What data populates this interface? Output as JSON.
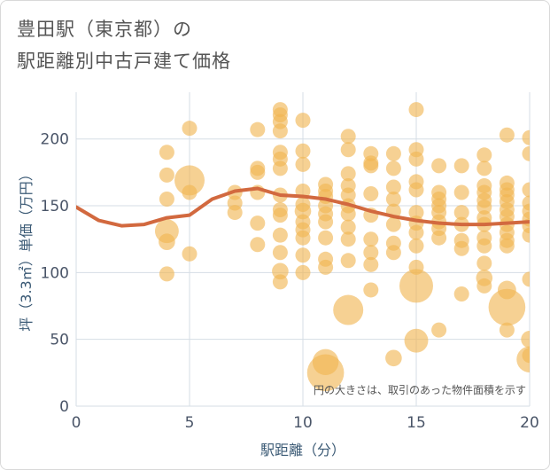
{
  "title_line1": "豊田駅（東京都）の",
  "title_line2": "駅距離別中古戸建て価格",
  "chart_data": {
    "type": "scatter",
    "xlabel": "駅距離（分）",
    "ylabel": "坪（3.3㎡）単価（万円）",
    "xlim": [
      0,
      20
    ],
    "ylim": [
      0,
      235
    ],
    "xticks": [
      0,
      5,
      10,
      15,
      20
    ],
    "yticks": [
      0,
      50,
      100,
      150,
      200
    ],
    "grid": true,
    "annotation": "円の大きさは、取引のあった物件面積を示す",
    "colors": {
      "bubble": "#f0b450",
      "trend": "#d2693f"
    },
    "points": [
      {
        "x": 4,
        "y": 190,
        "s": 1
      },
      {
        "x": 4,
        "y": 173,
        "s": 1
      },
      {
        "x": 4,
        "y": 155,
        "s": 1
      },
      {
        "x": 4,
        "y": 131,
        "s": 2.5
      },
      {
        "x": 4,
        "y": 123,
        "s": 1.2
      },
      {
        "x": 4,
        "y": 99,
        "s": 1
      },
      {
        "x": 5,
        "y": 208,
        "s": 1
      },
      {
        "x": 5,
        "y": 169,
        "s": 4
      },
      {
        "x": 5,
        "y": 160,
        "s": 1
      },
      {
        "x": 5,
        "y": 114,
        "s": 1
      },
      {
        "x": 7,
        "y": 160,
        "s": 1
      },
      {
        "x": 7,
        "y": 152,
        "s": 1
      },
      {
        "x": 7,
        "y": 145,
        "s": 1
      },
      {
        "x": 8,
        "y": 207,
        "s": 1
      },
      {
        "x": 8,
        "y": 178,
        "s": 1
      },
      {
        "x": 8,
        "y": 175,
        "s": 1
      },
      {
        "x": 8,
        "y": 160,
        "s": 1
      },
      {
        "x": 8,
        "y": 137,
        "s": 1
      },
      {
        "x": 8,
        "y": 121,
        "s": 1
      },
      {
        "x": 9,
        "y": 222,
        "s": 1
      },
      {
        "x": 9,
        "y": 218,
        "s": 1
      },
      {
        "x": 9,
        "y": 213,
        "s": 1
      },
      {
        "x": 9,
        "y": 206,
        "s": 1
      },
      {
        "x": 9,
        "y": 190,
        "s": 1
      },
      {
        "x": 9,
        "y": 185,
        "s": 1
      },
      {
        "x": 9,
        "y": 178,
        "s": 1
      },
      {
        "x": 9,
        "y": 158,
        "s": 1
      },
      {
        "x": 9,
        "y": 147,
        "s": 1
      },
      {
        "x": 9,
        "y": 143,
        "s": 1
      },
      {
        "x": 9,
        "y": 128,
        "s": 1
      },
      {
        "x": 9,
        "y": 115,
        "s": 1
      },
      {
        "x": 9,
        "y": 101,
        "s": 1.2
      },
      {
        "x": 9,
        "y": 93,
        "s": 1
      },
      {
        "x": 10,
        "y": 214,
        "s": 1
      },
      {
        "x": 10,
        "y": 191,
        "s": 1
      },
      {
        "x": 10,
        "y": 181,
        "s": 1
      },
      {
        "x": 10,
        "y": 161,
        "s": 1
      },
      {
        "x": 10,
        "y": 151,
        "s": 1
      },
      {
        "x": 10,
        "y": 146,
        "s": 1.2
      },
      {
        "x": 10,
        "y": 138,
        "s": 1
      },
      {
        "x": 10,
        "y": 132,
        "s": 1
      },
      {
        "x": 10,
        "y": 126,
        "s": 1
      },
      {
        "x": 10,
        "y": 113,
        "s": 1
      },
      {
        "x": 10,
        "y": 100,
        "s": 1
      },
      {
        "x": 11,
        "y": 166,
        "s": 1
      },
      {
        "x": 11,
        "y": 161,
        "s": 1
      },
      {
        "x": 11,
        "y": 157,
        "s": 1
      },
      {
        "x": 11,
        "y": 150,
        "s": 1
      },
      {
        "x": 11,
        "y": 144,
        "s": 1
      },
      {
        "x": 11,
        "y": 138,
        "s": 1
      },
      {
        "x": 11,
        "y": 126,
        "s": 1
      },
      {
        "x": 11,
        "y": 110,
        "s": 1
      },
      {
        "x": 11,
        "y": 104,
        "s": 1
      },
      {
        "x": 11,
        "y": 33,
        "s": 3
      },
      {
        "x": 11,
        "y": 25,
        "s": 6
      },
      {
        "x": 12,
        "y": 202,
        "s": 1
      },
      {
        "x": 12,
        "y": 192,
        "s": 1
      },
      {
        "x": 12,
        "y": 174,
        "s": 1
      },
      {
        "x": 12,
        "y": 165,
        "s": 1
      },
      {
        "x": 12,
        "y": 158,
        "s": 1
      },
      {
        "x": 12,
        "y": 150,
        "s": 1
      },
      {
        "x": 12,
        "y": 144,
        "s": 1
      },
      {
        "x": 12,
        "y": 134,
        "s": 1
      },
      {
        "x": 12,
        "y": 125,
        "s": 1
      },
      {
        "x": 12,
        "y": 109,
        "s": 1
      },
      {
        "x": 12,
        "y": 72,
        "s": 4
      },
      {
        "x": 13,
        "y": 189,
        "s": 1
      },
      {
        "x": 13,
        "y": 182,
        "s": 1
      },
      {
        "x": 13,
        "y": 180,
        "s": 1
      },
      {
        "x": 13,
        "y": 159,
        "s": 1
      },
      {
        "x": 13,
        "y": 143,
        "s": 1
      },
      {
        "x": 13,
        "y": 125,
        "s": 1
      },
      {
        "x": 13,
        "y": 115,
        "s": 1
      },
      {
        "x": 13,
        "y": 106,
        "s": 1
      },
      {
        "x": 13,
        "y": 87,
        "s": 1
      },
      {
        "x": 14,
        "y": 189,
        "s": 1
      },
      {
        "x": 14,
        "y": 178,
        "s": 1
      },
      {
        "x": 14,
        "y": 164,
        "s": 1
      },
      {
        "x": 14,
        "y": 155,
        "s": 1
      },
      {
        "x": 14,
        "y": 146,
        "s": 1
      },
      {
        "x": 14,
        "y": 136,
        "s": 1
      },
      {
        "x": 14,
        "y": 122,
        "s": 1
      },
      {
        "x": 14,
        "y": 115,
        "s": 1
      },
      {
        "x": 14,
        "y": 36,
        "s": 1.2
      },
      {
        "x": 15,
        "y": 222,
        "s": 1
      },
      {
        "x": 15,
        "y": 192,
        "s": 1
      },
      {
        "x": 15,
        "y": 185,
        "s": 1
      },
      {
        "x": 15,
        "y": 168,
        "s": 1
      },
      {
        "x": 15,
        "y": 162,
        "s": 1
      },
      {
        "x": 15,
        "y": 145,
        "s": 1
      },
      {
        "x": 15,
        "y": 137,
        "s": 1
      },
      {
        "x": 15,
        "y": 130,
        "s": 1
      },
      {
        "x": 15,
        "y": 120,
        "s": 1
      },
      {
        "x": 15,
        "y": 104,
        "s": 1
      },
      {
        "x": 15,
        "y": 90,
        "s": 5
      },
      {
        "x": 15,
        "y": 49,
        "s": 2.5
      },
      {
        "x": 16,
        "y": 180,
        "s": 1
      },
      {
        "x": 16,
        "y": 160,
        "s": 1
      },
      {
        "x": 16,
        "y": 155,
        "s": 1
      },
      {
        "x": 16,
        "y": 150,
        "s": 1
      },
      {
        "x": 16,
        "y": 145,
        "s": 1
      },
      {
        "x": 16,
        "y": 138,
        "s": 1
      },
      {
        "x": 16,
        "y": 133,
        "s": 1
      },
      {
        "x": 16,
        "y": 126,
        "s": 1
      },
      {
        "x": 16,
        "y": 57,
        "s": 1
      },
      {
        "x": 17,
        "y": 180,
        "s": 1
      },
      {
        "x": 17,
        "y": 160,
        "s": 1
      },
      {
        "x": 17,
        "y": 145,
        "s": 1
      },
      {
        "x": 17,
        "y": 136,
        "s": 1
      },
      {
        "x": 17,
        "y": 124,
        "s": 1
      },
      {
        "x": 17,
        "y": 118,
        "s": 1
      },
      {
        "x": 17,
        "y": 84,
        "s": 1
      },
      {
        "x": 18,
        "y": 188,
        "s": 1
      },
      {
        "x": 18,
        "y": 178,
        "s": 1
      },
      {
        "x": 18,
        "y": 165,
        "s": 1
      },
      {
        "x": 18,
        "y": 160,
        "s": 1
      },
      {
        "x": 18,
        "y": 154,
        "s": 1
      },
      {
        "x": 18,
        "y": 149,
        "s": 1
      },
      {
        "x": 18,
        "y": 141,
        "s": 1
      },
      {
        "x": 18,
        "y": 136,
        "s": 1
      },
      {
        "x": 18,
        "y": 126,
        "s": 1
      },
      {
        "x": 18,
        "y": 120,
        "s": 1
      },
      {
        "x": 18,
        "y": 107,
        "s": 1
      },
      {
        "x": 18,
        "y": 96,
        "s": 1.2
      },
      {
        "x": 18,
        "y": 90,
        "s": 1
      },
      {
        "x": 19,
        "y": 203,
        "s": 1
      },
      {
        "x": 19,
        "y": 167,
        "s": 1
      },
      {
        "x": 19,
        "y": 162,
        "s": 1
      },
      {
        "x": 19,
        "y": 158,
        "s": 1
      },
      {
        "x": 19,
        "y": 153,
        "s": 1
      },
      {
        "x": 19,
        "y": 147,
        "s": 1
      },
      {
        "x": 19,
        "y": 142,
        "s": 1
      },
      {
        "x": 19,
        "y": 136,
        "s": 1
      },
      {
        "x": 19,
        "y": 130,
        "s": 1
      },
      {
        "x": 19,
        "y": 124,
        "s": 1
      },
      {
        "x": 19,
        "y": 120,
        "s": 1
      },
      {
        "x": 19,
        "y": 87,
        "s": 1.5
      },
      {
        "x": 19,
        "y": 74,
        "s": 6
      },
      {
        "x": 19,
        "y": 57,
        "s": 1
      },
      {
        "x": 20,
        "y": 201,
        "s": 1
      },
      {
        "x": 20,
        "y": 189,
        "s": 1
      },
      {
        "x": 20,
        "y": 162,
        "s": 1
      },
      {
        "x": 20,
        "y": 152,
        "s": 1
      },
      {
        "x": 20,
        "y": 146,
        "s": 1
      },
      {
        "x": 20,
        "y": 140,
        "s": 1
      },
      {
        "x": 20,
        "y": 135,
        "s": 1
      },
      {
        "x": 20,
        "y": 128,
        "s": 1
      },
      {
        "x": 20,
        "y": 95,
        "s": 1
      },
      {
        "x": 20,
        "y": 50,
        "s": 1.3
      },
      {
        "x": 20,
        "y": 38,
        "s": 1
      },
      {
        "x": 20,
        "y": 35,
        "s": 3
      }
    ],
    "trend": [
      {
        "x": 0,
        "y": 149
      },
      {
        "x": 1,
        "y": 139
      },
      {
        "x": 2,
        "y": 135
      },
      {
        "x": 3,
        "y": 136
      },
      {
        "x": 4,
        "y": 141
      },
      {
        "x": 5,
        "y": 143
      },
      {
        "x": 6,
        "y": 155
      },
      {
        "x": 7,
        "y": 161
      },
      {
        "x": 8,
        "y": 163
      },
      {
        "x": 9,
        "y": 158
      },
      {
        "x": 10,
        "y": 157
      },
      {
        "x": 11,
        "y": 155
      },
      {
        "x": 12,
        "y": 151
      },
      {
        "x": 13,
        "y": 146
      },
      {
        "x": 14,
        "y": 142
      },
      {
        "x": 15,
        "y": 139
      },
      {
        "x": 16,
        "y": 137
      },
      {
        "x": 17,
        "y": 136
      },
      {
        "x": 18,
        "y": 136
      },
      {
        "x": 19,
        "y": 137
      },
      {
        "x": 20,
        "y": 138
      }
    ]
  }
}
